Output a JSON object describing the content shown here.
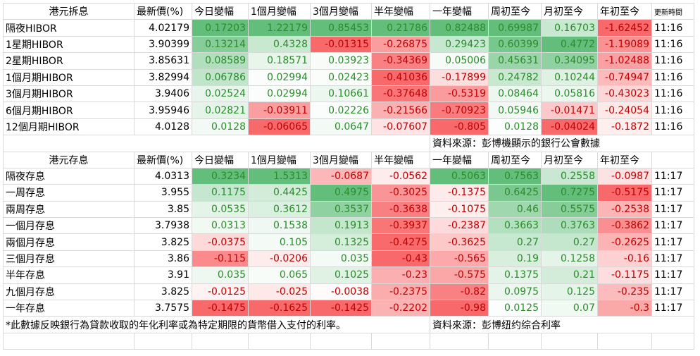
{
  "sections": [
    {
      "header": [
        "港元拆息",
        "最新價(%)",
        "今日變幅",
        "1個月變幅",
        "3個月變幅",
        "半年變幅",
        "一年變幅",
        "周初至今",
        "月初至今",
        "年初至今",
        "更新時間"
      ],
      "rows": [
        {
          "label": "隔夜HIBOR",
          "values": [
            4.02179,
            0.17203,
            1.22179,
            0.85453,
            0.21786,
            0.82488,
            0.69987,
            0.16703,
            -1.62452
          ],
          "time": "11:16"
        },
        {
          "label": "1星期HIBOR",
          "values": [
            3.90399,
            0.13214,
            0.4328,
            -0.01315,
            -0.26875,
            0.29423,
            0.60399,
            0.4772,
            -1.19089
          ],
          "time": "11:16"
        },
        {
          "label": "2星期HIBOR",
          "values": [
            3.85631,
            0.08589,
            0.18571,
            0.03923,
            -0.34369,
            0.05006,
            0.45631,
            0.34095,
            -1.02488
          ],
          "time": "11:16"
        },
        {
          "label": "1個月期HIBOR",
          "values": [
            3.82994,
            0.06786,
            0.02994,
            0.02423,
            -0.41036,
            -0.17899,
            0.24782,
            0.10244,
            -0.74947
          ],
          "time": "11:16"
        },
        {
          "label": "3個月期HIBOR",
          "values": [
            3.9406,
            0.02524,
            0.02994,
            0.10661,
            -0.37648,
            -0.5319,
            0.08464,
            0.05816,
            -0.43023
          ],
          "time": "11:16"
        },
        {
          "label": "6個月期HIBOR",
          "values": [
            3.95946,
            0.02821,
            -0.03911,
            0.02226,
            -0.21566,
            -0.70923,
            0.05946,
            -0.01471,
            -0.24054
          ],
          "time": "11:16"
        },
        {
          "label": "12個月期HIBOR",
          "values": [
            4.0128,
            0.0128,
            -0.06065,
            0.0647,
            -0.07607,
            -0.805,
            0.0128,
            -0.04024,
            -0.1872
          ],
          "time": "11:16"
        }
      ],
      "source": "資料來源：彭博機顯示的銀行公會數據"
    },
    {
      "header": [
        "港元存息",
        "最新價(%)",
        "今日變幅",
        "1個月變幅",
        "3個月變幅",
        "半年變幅",
        "一年變幅",
        "周初至今",
        "月初至今",
        "年初至今"
      ],
      "rows": [
        {
          "label": "隔夜存息",
          "values": [
            4.0313,
            0.3234,
            1.5313,
            -0.0687,
            -0.0562,
            0.5063,
            0.7563,
            0.2558,
            -0.0987
          ],
          "time": "11:17"
        },
        {
          "label": "一周存息",
          "values": [
            3.955,
            0.1175,
            0.4425,
            0.4975,
            -0.3025,
            -0.1375,
            0.6425,
            0.7275,
            -0.5175
          ],
          "time": "11:17"
        },
        {
          "label": "兩周存息",
          "values": [
            3.85,
            0.0535,
            0.3612,
            0.3537,
            -0.3638,
            -0.1075,
            0.46,
            0.5575,
            -0.2538
          ],
          "time": "11:17"
        },
        {
          "label": "一個月存息",
          "values": [
            3.7938,
            0.0313,
            0.1538,
            0.1913,
            -0.3937,
            -0.2387,
            0.3663,
            0.3763,
            -0.3862
          ],
          "time": "11:17"
        },
        {
          "label": "兩個月存息",
          "values": [
            3.825,
            -0.0375,
            0.105,
            0.1325,
            -0.4275,
            -0.3625,
            0.27,
            0.27,
            -0.2625
          ],
          "time": "11:17"
        },
        {
          "label": "三個月存息",
          "values": [
            3.86,
            -0.115,
            -0.0206,
            0.035,
            -0.43,
            -0.565,
            0.19,
            0.1258,
            -0.16
          ],
          "time": "11:17"
        },
        {
          "label": "半年存息",
          "values": [
            3.91,
            0.035,
            0.065,
            0.1025,
            -0.23,
            -0.575,
            0.1375,
            0.21,
            -0.1175
          ],
          "time": "11:17"
        },
        {
          "label": "九個月存息",
          "values": [
            3.825,
            -0.0125,
            -0.025,
            -0.0038,
            -0.2375,
            -0.82,
            0.0975,
            0.125,
            -0.235
          ],
          "time": "11:17"
        },
        {
          "label": "一年存息",
          "values": [
            3.7575,
            -0.1475,
            -0.1625,
            -0.1425,
            -0.2202,
            -0.98,
            0.0125,
            0.07,
            -0.3
          ],
          "time": "11:17"
        }
      ],
      "footnote": "*此數據反映銀行為貸款收取的年化利率或為特定期限的貨幣借入支付的利率。",
      "source": "資料來源：彭博纽约综合利率"
    }
  ]
}
